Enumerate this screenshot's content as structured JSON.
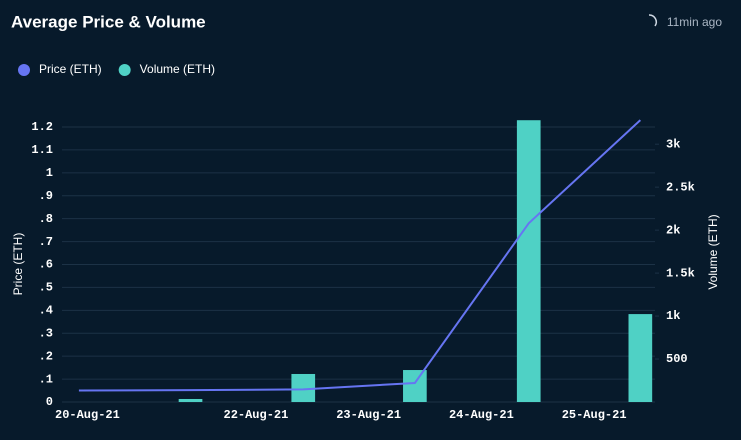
{
  "chart_data": {
    "type": "bar-line",
    "title": "Average Price & Volume",
    "updated": "11min ago",
    "x": [
      20.43,
      21.42,
      22.42,
      23.41,
      24.42,
      25.41
    ],
    "xlim": [
      20.28,
      25.54
    ],
    "xticks": [
      {
        "value": 20,
        "label": "20-Aug-21"
      },
      {
        "value": 22,
        "label": "22-Aug-21"
      },
      {
        "value": 23,
        "label": "23-Aug-21"
      },
      {
        "value": 24,
        "label": "24-Aug-21"
      },
      {
        "value": 25,
        "label": "25-Aug-21"
      }
    ],
    "ylabel": "Price (ETH)",
    "y2label": "Volume (ETH)",
    "ylim": [
      0,
      1.2
    ],
    "yticks": [
      0,
      {
        "value": 0.1,
        "label": ".1"
      },
      {
        "value": 0.2,
        "label": ".2"
      },
      {
        "value": 0.3,
        "label": ".3"
      },
      {
        "value": 0.4,
        "label": ".4"
      },
      {
        "value": 0.5,
        "label": ".5"
      },
      {
        "value": 0.6,
        "label": ".6"
      },
      {
        "value": 0.7,
        "label": ".7"
      },
      {
        "value": 0.8,
        "label": ".8"
      },
      {
        "value": 0.9,
        "label": ".9"
      },
      1,
      1.1,
      1.2
    ],
    "y2lim": [
      0,
      3200
    ],
    "y2ticks": [
      500,
      {
        "value": 1000,
        "label": "1k"
      },
      {
        "value": 1500,
        "label": "1.5k"
      },
      {
        "value": 2000,
        "label": "2k"
      },
      {
        "value": 2500,
        "label": "2.5k"
      },
      {
        "value": 3000,
        "label": "3k"
      }
    ],
    "grid": true,
    "series": [
      {
        "name": "Price (ETH)",
        "type": "line",
        "color": "#6675f2",
        "values": [
          0.05,
          0.052,
          0.055,
          0.083,
          0.78,
          1.23
        ]
      },
      {
        "name": "Volume (ETH)",
        "type": "bar",
        "axis": "y2",
        "color": "#4fd1c5",
        "values": [
          null,
          35,
          326,
          372,
          3279,
          1023
        ]
      }
    ]
  }
}
